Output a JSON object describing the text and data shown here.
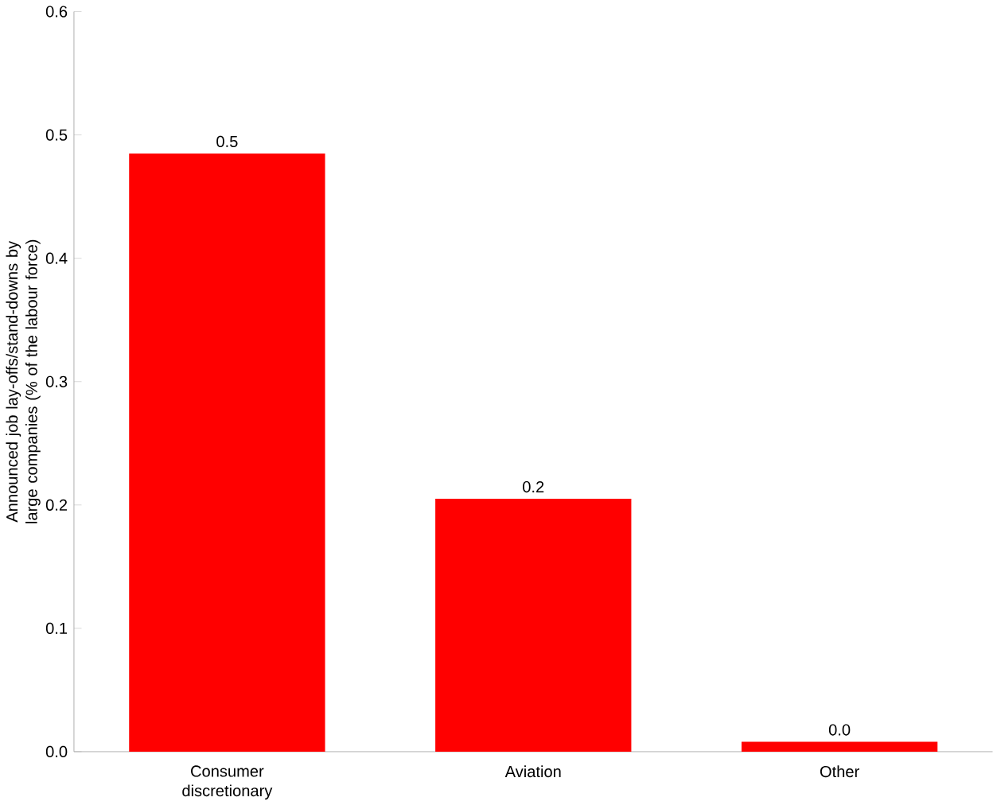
{
  "chart_data": {
    "type": "bar",
    "ylabel": "Announced job lay-offs/stand-downs by large companies (% of the labour force)",
    "categories": [
      "Consumer discretionary",
      "Aviation",
      "Other"
    ],
    "values": [
      0.485,
      0.205,
      0.008
    ],
    "value_labels": [
      "0.5",
      "0.2",
      "0.0"
    ],
    "color": "#ff0000",
    "ylim": [
      0,
      0.6
    ],
    "yticks": [
      {
        "value": 0,
        "label": "0.0"
      },
      {
        "value": 0.1,
        "label": "0.1"
      },
      {
        "value": 0.2,
        "label": "0.2"
      },
      {
        "value": 0.3,
        "label": "0.3"
      },
      {
        "value": 0.4,
        "label": "0.4"
      },
      {
        "value": 0.5,
        "label": "0.5"
      },
      {
        "value": 0.6,
        "label": "0.6"
      }
    ],
    "grid": false
  }
}
